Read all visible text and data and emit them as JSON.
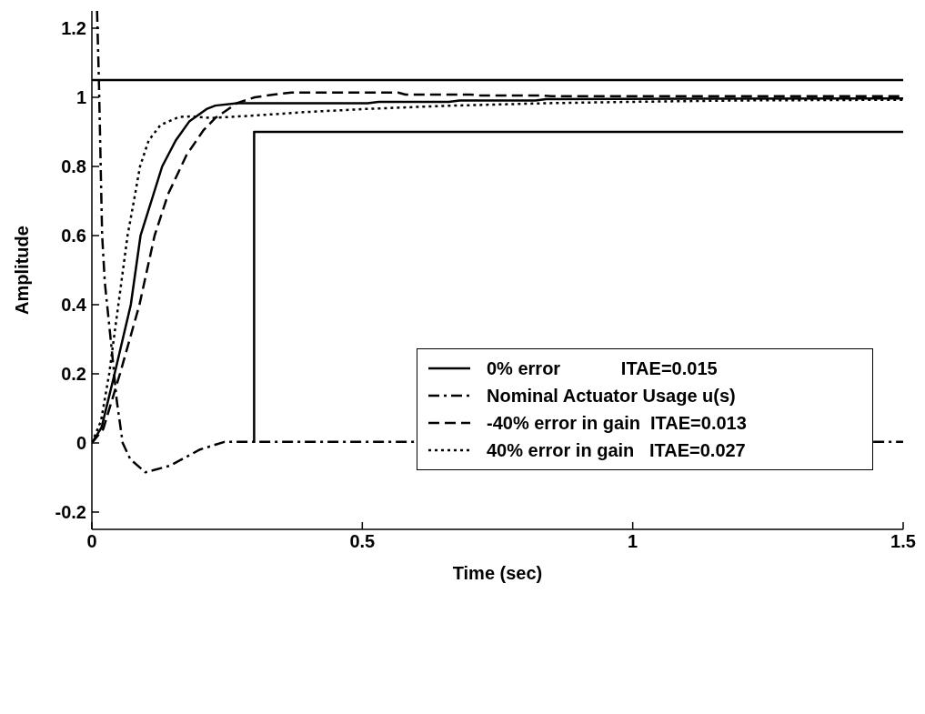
{
  "chart_data": {
    "type": "line",
    "xlabel": "Time (sec)",
    "ylabel": "Amplitude",
    "xlim": [
      0,
      1.5
    ],
    "xticks": [
      0,
      0.5,
      1,
      1.5
    ],
    "ylim": [
      -0.25,
      1.25
    ],
    "yticks": [
      -0.2,
      0,
      0.2,
      0.4,
      0.6,
      0.8,
      1,
      1.2
    ],
    "grid": false,
    "legend": "right",
    "marker": "none",
    "ref_lines": [
      {
        "axis": "y",
        "value": 1.05,
        "color": "#000000",
        "line_style": "solid"
      }
    ],
    "series": [
      {
        "name": "0% error            ITAE=0.015",
        "color": "#000000",
        "line_style": "solid",
        "x": [
          0,
          0.018,
          0.042,
          0.072,
          0.09,
          0.13,
          0.155,
          0.18,
          0.212,
          0.228,
          0.268,
          0.51,
          0.53,
          0.66,
          0.68,
          0.82,
          0.84,
          1.5
        ],
        "values": [
          0,
          0.045,
          0.2,
          0.4,
          0.6,
          0.8,
          0.875,
          0.93,
          0.966,
          0.976,
          0.983,
          0.983,
          0.987,
          0.987,
          0.991,
          0.991,
          0.995,
          0.997
        ]
      },
      {
        "name": "Nominal Actuator Usage u(s)",
        "color": "#000000",
        "line_style": "dashdot",
        "x": [
          0.0096,
          0.013,
          0.019,
          0.024,
          0.037,
          0.046,
          0.057,
          0.071,
          0.099,
          0.144,
          0.2,
          0.245,
          1.5
        ],
        "values": [
          1.25,
          1.05,
          0.6,
          0.464,
          0.266,
          0.123,
          0,
          -0.047,
          -0.085,
          -0.066,
          -0.019,
          0.003,
          0.003
        ]
      },
      {
        "name": "-40% error in gain  ITAE=0.013",
        "color": "#000000",
        "line_style": "dashed",
        "x": [
          0,
          0.021,
          0.052,
          0.088,
          0.116,
          0.141,
          0.175,
          0.206,
          0.228,
          0.268,
          0.301,
          0.336,
          0.369,
          0.566,
          0.58,
          0.7,
          0.72,
          0.835,
          0.85,
          1.5
        ],
        "values": [
          0,
          0.04,
          0.2,
          0.4,
          0.6,
          0.72,
          0.833,
          0.904,
          0.94,
          0.983,
          1.0,
          1.008,
          1.014,
          1.014,
          1.008,
          1.008,
          1.005,
          1.005,
          1.003,
          1.003
        ]
      },
      {
        "name": "40% error in gain   ITAE=0.027",
        "color": "#000000",
        "line_style": "dotted",
        "x": [
          0,
          0.017,
          0.032,
          0.049,
          0.066,
          0.08,
          0.089,
          0.105,
          0.127,
          0.161,
          0.183,
          0.22,
          0.307,
          0.391,
          0.503,
          0.645,
          0.84,
          1.0,
          1.2,
          1.5
        ],
        "values": [
          0,
          0.064,
          0.2,
          0.4,
          0.6,
          0.72,
          0.8,
          0.875,
          0.92,
          0.943,
          0.945,
          0.94,
          0.948,
          0.957,
          0.966,
          0.975,
          0.983,
          0.987,
          0.991,
          0.993
        ]
      },
      {
        "color": "#000000",
        "line_style": "solid",
        "x": [
          0.3,
          0.3,
          1.5
        ],
        "values": [
          0,
          0.9,
          0.9
        ]
      }
    ]
  }
}
